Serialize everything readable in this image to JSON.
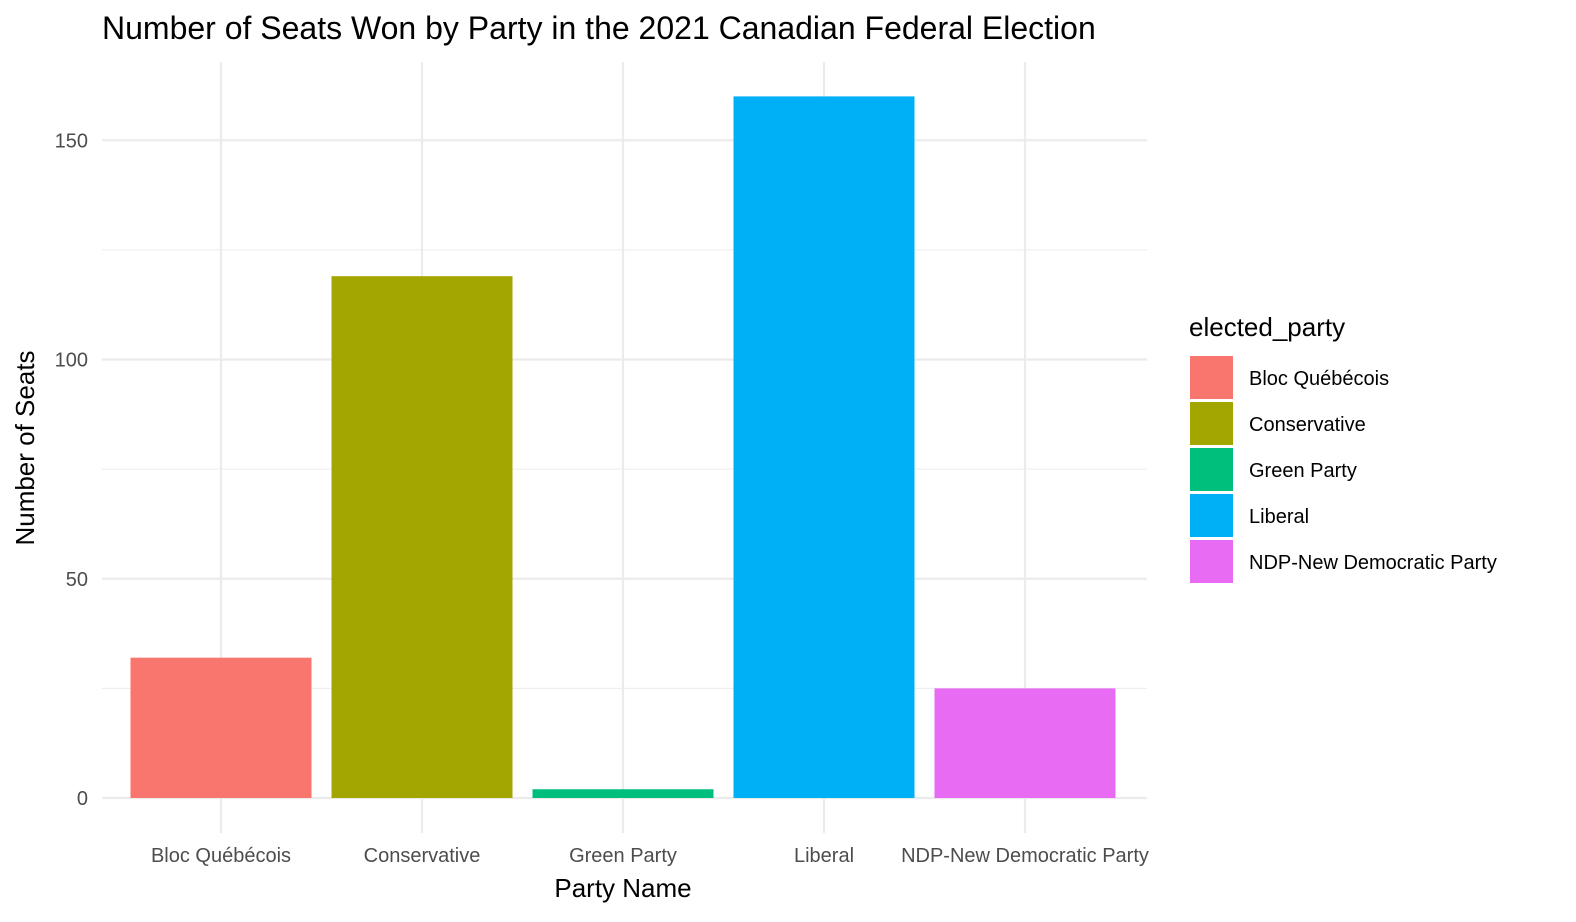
{
  "chart_data": {
    "type": "bar",
    "title": "Number of Seats Won by Party in the 2021 Canadian Federal Election",
    "xlabel": "Party Name",
    "ylabel": "Number of Seats",
    "categories": [
      "Bloc Québécois",
      "Conservative",
      "Green Party",
      "Liberal",
      "NDP-New Democratic Party"
    ],
    "values": [
      32,
      119,
      2,
      160,
      25
    ],
    "colors": [
      "#F8766D",
      "#A3A500",
      "#00BF7D",
      "#00B0F6",
      "#E76BF3"
    ],
    "y_ticks": [
      0,
      50,
      100,
      150
    ],
    "ylim": [
      0,
      160
    ],
    "grid": true,
    "legend": {
      "title": "elected_party",
      "position": "right",
      "entries": [
        "Bloc Québécois",
        "Conservative",
        "Green Party",
        "Liberal",
        "NDP-New Democratic Party"
      ]
    }
  }
}
